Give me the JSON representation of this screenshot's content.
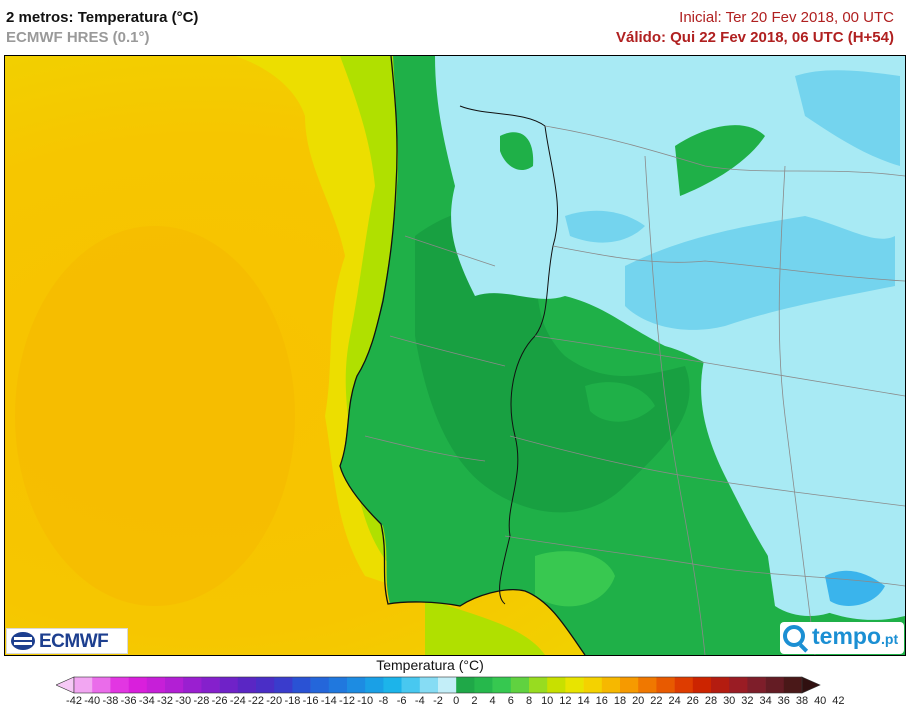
{
  "header": {
    "title": "2 metros: Temperatura (°C)",
    "model": "ECMWF HRES (0.1°)",
    "initial": "Inicial: Ter 20 Fev 2018, 00 UTC",
    "valid": "Válido: Qui 22 Fev 2018, 06 UTC (H+54)"
  },
  "logos": {
    "ecmwf": "ECMWF",
    "tempo_main": "tempo",
    "tempo_suffix": ".pt"
  },
  "legend": {
    "title": "Temperatura (°C)",
    "ticks": [
      "-42",
      "-40",
      "-38",
      "-36",
      "-34",
      "-32",
      "-30",
      "-28",
      "-26",
      "-24",
      "-22",
      "-20",
      "-18",
      "-16",
      "-14",
      "-12",
      "-10",
      "-8",
      "-6",
      "-4",
      "-2",
      "0",
      "2",
      "4",
      "6",
      "8",
      "10",
      "12",
      "14",
      "16",
      "18",
      "20",
      "22",
      "24",
      "26",
      "28",
      "30",
      "32",
      "34",
      "36",
      "38",
      "40",
      "42"
    ],
    "colors": [
      "#f6c9f6",
      "#f2a6f2",
      "#ea6cea",
      "#e236e2",
      "#d91fdc",
      "#c61fd8",
      "#b21fd4",
      "#9a1fd0",
      "#8520cc",
      "#6f22c8",
      "#5a26c4",
      "#4a2ec6",
      "#3a3ccc",
      "#2a52d4",
      "#2466da",
      "#2078de",
      "#1d8ce2",
      "#1aa0e6",
      "#1cb4ea",
      "#48c8f0",
      "#86dcf4",
      "#c3eef8",
      "#1fa848",
      "#26b84c",
      "#36c850",
      "#60d240",
      "#98dc20",
      "#c8e000",
      "#e8e400",
      "#f4d200",
      "#f6b800",
      "#f69a00",
      "#f07800",
      "#e85a00",
      "#de3c00",
      "#cc2400",
      "#b41c10",
      "#9a1c24",
      "#7e1e2a",
      "#641c24",
      "#4a1818",
      "#301010"
    ]
  },
  "colors": {
    "sea_warm": "#f8c800",
    "sea_mid": "#ecdc00",
    "sea_coast": "#a8e000",
    "land_green": "#1fb048",
    "land_dark": "#169c40",
    "land_cold": "#a8eaf4",
    "land_very_cold": "#74d4ee",
    "border": "#8a8a8a",
    "coastline": "#111111"
  }
}
